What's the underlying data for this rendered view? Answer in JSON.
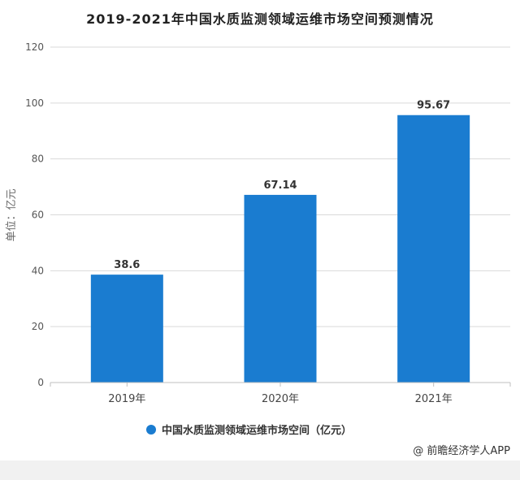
{
  "chart_data": {
    "type": "bar",
    "title": "2019-2021年中国水质监测领域运维市场空间预测情况",
    "categories": [
      "2019年",
      "2020年",
      "2021年"
    ],
    "series": [
      {
        "name": "中国水质监测领域运维市场空间（亿元）",
        "values": [
          38.6,
          67.14,
          95.67
        ]
      }
    ],
    "data_labels": [
      "38.6",
      "67.14",
      "95.67"
    ],
    "ylabel": "单位：亿元",
    "xlabel": "",
    "ylim": [
      0,
      120
    ],
    "yticks": [
      0,
      20,
      40,
      60,
      80,
      100,
      120
    ],
    "grid": true,
    "legend_position": "bottom",
    "bar_color": "#1a7cd0",
    "grid_color": "#d9d9d9",
    "axis_color": "#bfbfbf"
  },
  "source_note": "@ 前瞻经济学人APP"
}
